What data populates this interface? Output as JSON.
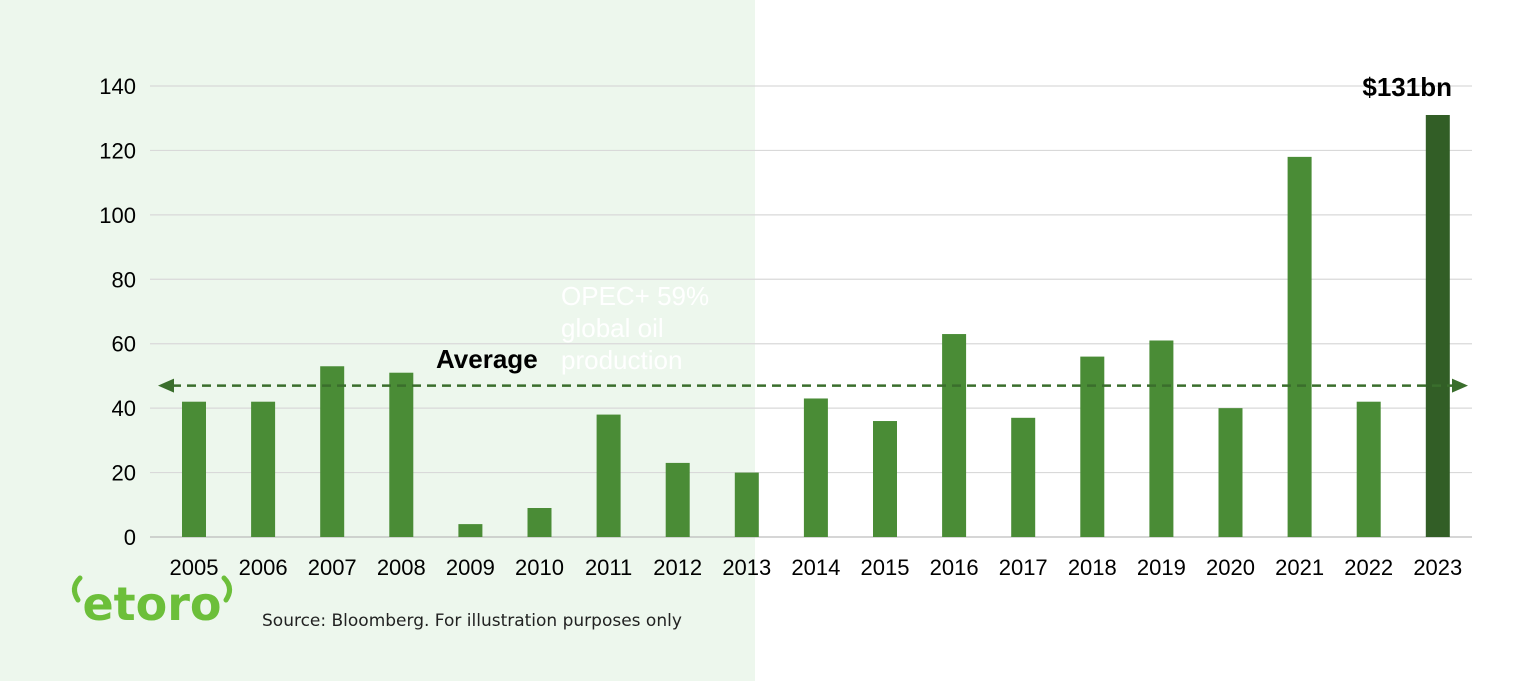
{
  "chart_data": {
    "type": "bar",
    "categories": [
      "2005",
      "2006",
      "2007",
      "2008",
      "2009",
      "2010",
      "2011",
      "2012",
      "2013",
      "2014",
      "2015",
      "2016",
      "2017",
      "2018",
      "2019",
      "2020",
      "2021",
      "2022",
      "2023"
    ],
    "values": [
      42,
      42,
      53,
      51,
      4,
      9,
      38,
      23,
      20,
      43,
      36,
      63,
      37,
      56,
      61,
      40,
      118,
      42,
      131
    ],
    "ylim": [
      0,
      140
    ],
    "yticks": [
      "0",
      "20",
      "40",
      "60",
      "80",
      "100",
      "120",
      "140"
    ],
    "grid": true,
    "average_value": 47,
    "average_label": "Average",
    "highlight_label": "$131bn",
    "shaded_label": "OPEC+ 59% global oil production",
    "colors": {
      "bar": "#4a8c36",
      "highlight_bar": "#325e26",
      "average_line": "#3a6e2c",
      "shade": "#edf7ed"
    }
  },
  "logo": {
    "text": "etoro",
    "color": "#6cbf3a"
  },
  "footer": {
    "source": "Source: Bloomberg. For illustration purposes only"
  }
}
